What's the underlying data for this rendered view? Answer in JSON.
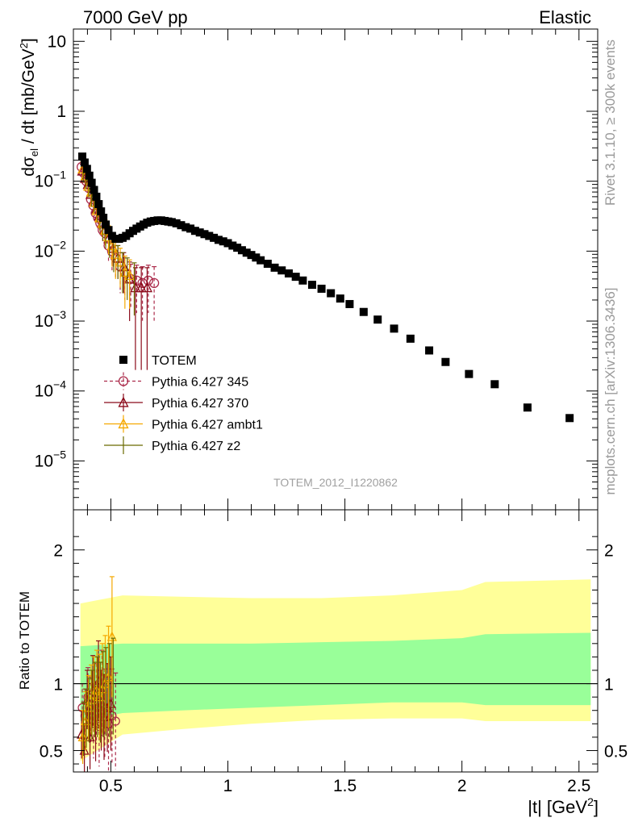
{
  "header": {
    "left": "7000 GeV pp",
    "right": "Elastic"
  },
  "side_labels": {
    "rivet": "Rivet 3.1.10, ≥ 300k events",
    "mcplots": "mcplots.cern.ch [arXiv:1306.3436]"
  },
  "analysis_id": "TOTEM_2012_I1220862",
  "chart_data": [
    {
      "type": "scatter",
      "panel": "main",
      "ylabel": "dσ_el / dt [mb/GeV^2]",
      "yscale": "log",
      "xlim": [
        0.34,
        2.58
      ],
      "ylim": [
        2e-06,
        15
      ],
      "y_tick_labels": [
        "10^-5",
        "10^-4",
        "10^-3",
        "10^-2",
        "10^-1",
        "1",
        "10"
      ],
      "legend_position": "lower-left",
      "series": [
        {
          "name": "TOTEM",
          "color": "#000000",
          "marker": "square",
          "x": [
            0.378,
            0.388,
            0.398,
            0.408,
            0.418,
            0.428,
            0.438,
            0.448,
            0.458,
            0.468,
            0.478,
            0.49,
            0.505,
            0.52,
            0.535,
            0.55,
            0.565,
            0.58,
            0.595,
            0.61,
            0.625,
            0.64,
            0.655,
            0.67,
            0.685,
            0.7,
            0.715,
            0.73,
            0.745,
            0.76,
            0.78,
            0.8,
            0.82,
            0.84,
            0.86,
            0.88,
            0.9,
            0.92,
            0.94,
            0.96,
            0.98,
            1.0,
            1.02,
            1.04,
            1.06,
            1.08,
            1.1,
            1.12,
            1.14,
            1.17,
            1.2,
            1.23,
            1.26,
            1.29,
            1.32,
            1.36,
            1.4,
            1.44,
            1.48,
            1.52,
            1.58,
            1.64,
            1.71,
            1.78,
            1.86,
            1.93,
            2.03,
            2.14,
            2.28,
            2.46
          ],
          "y": [
            0.225,
            0.185,
            0.15,
            0.12,
            0.095,
            0.075,
            0.06,
            0.047,
            0.037,
            0.03,
            0.024,
            0.02,
            0.0165,
            0.015,
            0.015,
            0.0155,
            0.0165,
            0.018,
            0.0195,
            0.021,
            0.0225,
            0.024,
            0.0255,
            0.0265,
            0.027,
            0.0275,
            0.0275,
            0.027,
            0.0265,
            0.026,
            0.025,
            0.0235,
            0.022,
            0.021,
            0.0195,
            0.0185,
            0.0175,
            0.0165,
            0.0155,
            0.0145,
            0.0138,
            0.013,
            0.012,
            0.0112,
            0.0103,
            0.0095,
            0.0088,
            0.0081,
            0.0074,
            0.0066,
            0.0058,
            0.0053,
            0.0048,
            0.0043,
            0.0038,
            0.0033,
            0.0029,
            0.0025,
            0.0021,
            0.00175,
            0.00135,
            0.00105,
            0.00078,
            0.00056,
            0.00038,
            0.00026,
            0.000175,
            0.000125,
            5.8e-05,
            4.1e-05
          ]
        },
        {
          "name": "Pythia 6.427 345",
          "color": "#ac2c4c",
          "marker": "circle",
          "line_style": "dashed",
          "x": [
            0.375,
            0.385,
            0.395,
            0.405,
            0.415,
            0.425,
            0.435,
            0.445,
            0.455,
            0.465,
            0.475,
            0.49,
            0.505,
            0.52,
            0.54,
            0.56,
            0.585,
            0.61,
            0.635,
            0.66,
            0.685
          ],
          "y": [
            0.16,
            0.13,
            0.1,
            0.08,
            0.055,
            0.045,
            0.035,
            0.03,
            0.025,
            0.02,
            0.018,
            0.012,
            0.01,
            0.008,
            0.006,
            0.005,
            0.004,
            0.0038,
            0.0035,
            0.0038,
            0.0035
          ],
          "yerr": [
            0.04,
            0.03,
            0.025,
            0.02,
            0.015,
            0.012,
            0.01,
            0.009,
            0.008,
            0.007,
            0.006,
            0.005,
            0.005,
            0.004,
            0.0035,
            0.003,
            0.0025,
            0.0025,
            0.0025,
            0.0025,
            0.0025
          ]
        },
        {
          "name": "Pythia 6.427 370",
          "color": "#8b0a1a",
          "marker": "triangle",
          "line_style": "solid",
          "x": [
            0.378,
            0.39,
            0.402,
            0.414,
            0.426,
            0.438,
            0.45,
            0.462,
            0.474,
            0.49,
            0.51,
            0.53,
            0.555,
            0.58,
            0.605,
            0.63,
            0.655
          ],
          "y": [
            0.14,
            0.11,
            0.09,
            0.065,
            0.05,
            0.04,
            0.032,
            0.025,
            0.02,
            0.015,
            0.011,
            0.008,
            0.006,
            0.004,
            0.003,
            0.003,
            0.003
          ],
          "yerr": [
            0.035,
            0.028,
            0.022,
            0.018,
            0.014,
            0.011,
            0.009,
            0.008,
            0.007,
            0.006,
            0.005,
            0.004,
            0.0035,
            0.003,
            0.0028,
            0.0028,
            0.0028
          ]
        },
        {
          "name": "Pythia 6.427 ambt1",
          "color": "#f5a800",
          "marker": "triangle",
          "line_style": "solid",
          "x": [
            0.38,
            0.392,
            0.404,
            0.416,
            0.428,
            0.44,
            0.452,
            0.464,
            0.476,
            0.49,
            0.505,
            0.52,
            0.54,
            0.56,
            0.58
          ],
          "y": [
            0.15,
            0.12,
            0.085,
            0.07,
            0.05,
            0.038,
            0.03,
            0.025,
            0.02,
            0.016,
            0.012,
            0.009,
            0.007,
            0.005,
            0.0045
          ],
          "yerr": [
            0.04,
            0.03,
            0.025,
            0.02,
            0.015,
            0.012,
            0.01,
            0.009,
            0.008,
            0.007,
            0.006,
            0.005,
            0.004,
            0.0035,
            0.003
          ]
        },
        {
          "name": "Pythia 6.427 z2",
          "color": "#6a6a00",
          "marker": "none",
          "line_style": "solid",
          "x": [
            0.382,
            0.394,
            0.406,
            0.418,
            0.43,
            0.442,
            0.454,
            0.466,
            0.478,
            0.494,
            0.512,
            0.53,
            0.55,
            0.57,
            0.6
          ],
          "y": [
            0.13,
            0.105,
            0.08,
            0.06,
            0.048,
            0.036,
            0.028,
            0.022,
            0.018,
            0.014,
            0.01,
            0.008,
            0.006,
            0.005,
            0.004
          ],
          "yerr": [
            0.035,
            0.028,
            0.022,
            0.017,
            0.013,
            0.01,
            0.009,
            0.008,
            0.007,
            0.006,
            0.005,
            0.004,
            0.0035,
            0.003,
            0.0028
          ]
        }
      ]
    },
    {
      "type": "scatter",
      "panel": "ratio",
      "ylabel": "Ratio to TOTEM",
      "xlabel": "|t| [GeV^2]",
      "xlim": [
        0.34,
        2.58
      ],
      "ylim": [
        0.34,
        2.3
      ],
      "x_tick_labels": [
        "0.5",
        "1",
        "1.5",
        "2",
        "2.5"
      ],
      "y_tick_labels": [
        "0.5",
        "1",
        "2"
      ],
      "reference_line": 1,
      "bands": [
        {
          "level": "outer",
          "color": "#ffff99",
          "x": [
            0.37,
            0.55,
            0.8,
            1.1,
            1.4,
            1.7,
            2.0,
            2.1,
            2.55
          ],
          "low": [
            0.42,
            0.62,
            0.66,
            0.7,
            0.73,
            0.74,
            0.74,
            0.72,
            0.72
          ],
          "high": [
            1.6,
            1.66,
            1.65,
            1.64,
            1.64,
            1.66,
            1.7,
            1.76,
            1.78
          ]
        },
        {
          "level": "inner",
          "color": "#99ff99",
          "x": [
            0.37,
            0.55,
            0.8,
            1.1,
            1.4,
            1.7,
            2.0,
            2.1,
            2.55
          ],
          "low": [
            0.72,
            0.78,
            0.8,
            0.82,
            0.84,
            0.86,
            0.86,
            0.84,
            0.84
          ],
          "high": [
            1.28,
            1.3,
            1.3,
            1.3,
            1.31,
            1.32,
            1.34,
            1.37,
            1.38
          ]
        }
      ],
      "series": [
        {
          "name": "Pythia 6.427 345",
          "color": "#ac2c4c",
          "marker": "circle",
          "x": [
            0.378,
            0.39,
            0.402,
            0.414,
            0.426,
            0.438,
            0.45,
            0.462,
            0.474,
            0.49,
            0.505,
            0.52
          ],
          "y": [
            0.82,
            0.76,
            0.9,
            0.8,
            0.72,
            0.85,
            0.68,
            0.93,
            0.78,
            0.7,
            0.76,
            0.72
          ],
          "yerr": [
            0.18,
            0.2,
            0.22,
            0.25,
            0.28,
            0.3,
            0.3,
            0.32,
            0.33,
            0.35,
            0.35,
            0.36
          ]
        },
        {
          "name": "Pythia 6.427 370",
          "color": "#8b0a1a",
          "marker": "triangle",
          "x": [
            0.375,
            0.387,
            0.399,
            0.411,
            0.423,
            0.435,
            0.447,
            0.459,
            0.471,
            0.485,
            0.5
          ],
          "y": [
            0.62,
            0.5,
            0.88,
            0.6,
            0.95,
            0.7,
            1.02,
            0.8,
            0.75,
            0.82,
            0.85
          ],
          "yerr": [
            0.18,
            0.2,
            0.22,
            0.24,
            0.26,
            0.28,
            0.3,
            0.3,
            0.32,
            0.33,
            0.35
          ]
        },
        {
          "name": "Pythia 6.427 ambt1",
          "color": "#f5a800",
          "marker": "triangle",
          "x": [
            0.38,
            0.392,
            0.404,
            0.416,
            0.428,
            0.44,
            0.452,
            0.464,
            0.476,
            0.49,
            0.505
          ],
          "y": [
            0.6,
            0.72,
            0.82,
            0.88,
            0.92,
            0.95,
            0.9,
            0.96,
            1.0,
            1.05,
            1.35
          ],
          "yerr": [
            0.2,
            0.22,
            0.24,
            0.26,
            0.28,
            0.3,
            0.32,
            0.34,
            0.36,
            0.38,
            0.45
          ]
        },
        {
          "name": "Pythia 6.427 z2",
          "color": "#6a6a00",
          "marker": "none",
          "x": [
            0.383,
            0.395,
            0.407,
            0.419,
            0.431,
            0.443,
            0.455,
            0.467,
            0.479,
            0.494,
            0.51
          ],
          "y": [
            0.66,
            0.74,
            0.8,
            0.84,
            0.88,
            0.9,
            0.86,
            0.92,
            0.94,
            0.95,
            0.98
          ],
          "yerr": [
            0.2,
            0.22,
            0.24,
            0.26,
            0.28,
            0.3,
            0.3,
            0.32,
            0.33,
            0.35,
            0.36
          ]
        }
      ]
    }
  ]
}
